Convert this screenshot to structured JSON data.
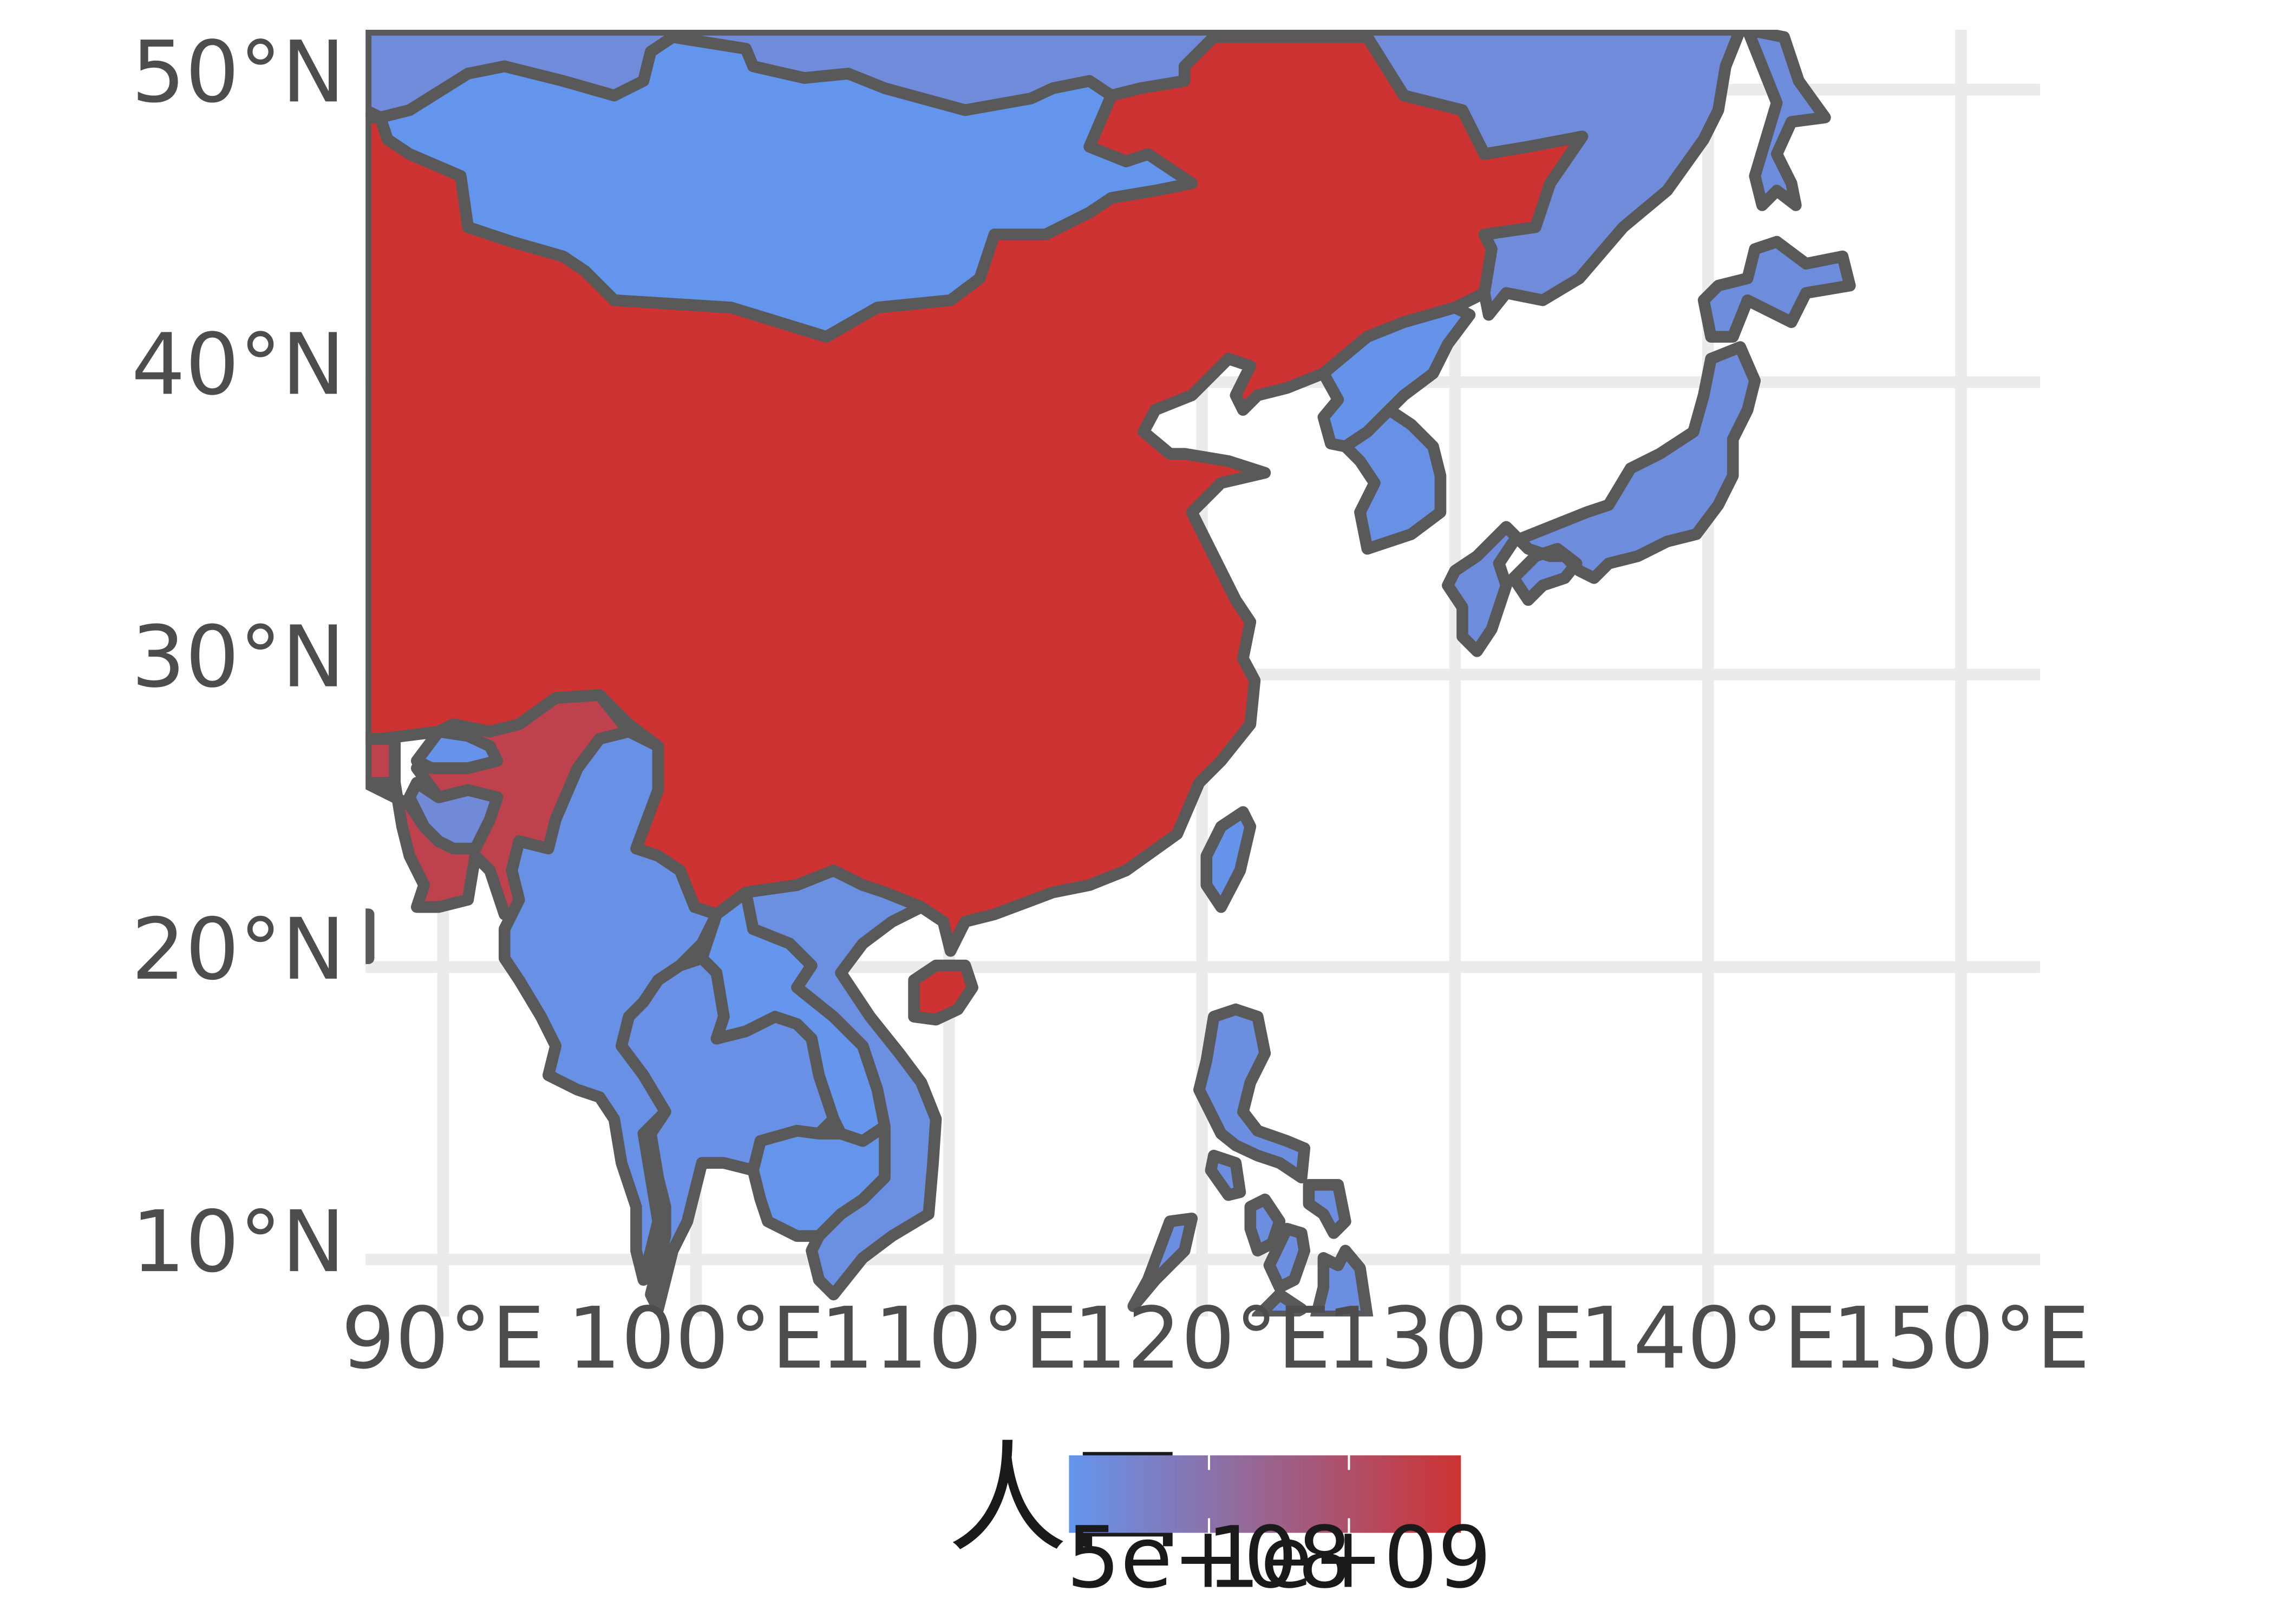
{
  "chart_data": {
    "type": "choropleth",
    "title": "",
    "subtitle": "",
    "xlabel": "",
    "ylabel": "",
    "x_ticks": [
      "90°E",
      "100°E",
      "110°E",
      "120°E",
      "130°E",
      "140°E",
      "150°E"
    ],
    "x_tick_values": [
      90,
      100,
      110,
      120,
      130,
      140,
      150
    ],
    "y_ticks": [
      "50°N",
      "40°N",
      "30°N",
      "20°N",
      "10°N"
    ],
    "y_tick_values": [
      50,
      40,
      30,
      20,
      10
    ],
    "xlim": [
      87,
      153
    ],
    "ylim": [
      8,
      52
    ],
    "grid": true,
    "legend": {
      "title": "人口",
      "position": "bottom",
      "ticks": [
        "5e+08",
        "1e+09"
      ],
      "tick_values": [
        500000000,
        1000000000
      ],
      "range": [
        0,
        1400000000
      ],
      "low_color": "#6495ED",
      "high_color": "#CD3333"
    },
    "regions": [
      {
        "id": "china",
        "value": 1400000000
      },
      {
        "id": "india",
        "value": 1200000000
      },
      {
        "id": "russia",
        "value": 145000000
      },
      {
        "id": "mongolia",
        "value": 3000000
      },
      {
        "id": "japan",
        "value": 127000000
      },
      {
        "id": "north-korea",
        "value": 25000000
      },
      {
        "id": "south-korea",
        "value": 51000000
      },
      {
        "id": "taiwan",
        "value": 23000000
      },
      {
        "id": "philippines",
        "value": 100000000
      },
      {
        "id": "vietnam",
        "value": 92000000
      },
      {
        "id": "laos",
        "value": 7000000
      },
      {
        "id": "cambodia",
        "value": 15000000
      },
      {
        "id": "thailand",
        "value": 68000000
      },
      {
        "id": "myanmar",
        "value": 52000000
      },
      {
        "id": "bangladesh",
        "value": 160000000
      },
      {
        "id": "bhutan",
        "value": 800000
      },
      {
        "id": "nepal",
        "value": 28000000
      }
    ]
  }
}
